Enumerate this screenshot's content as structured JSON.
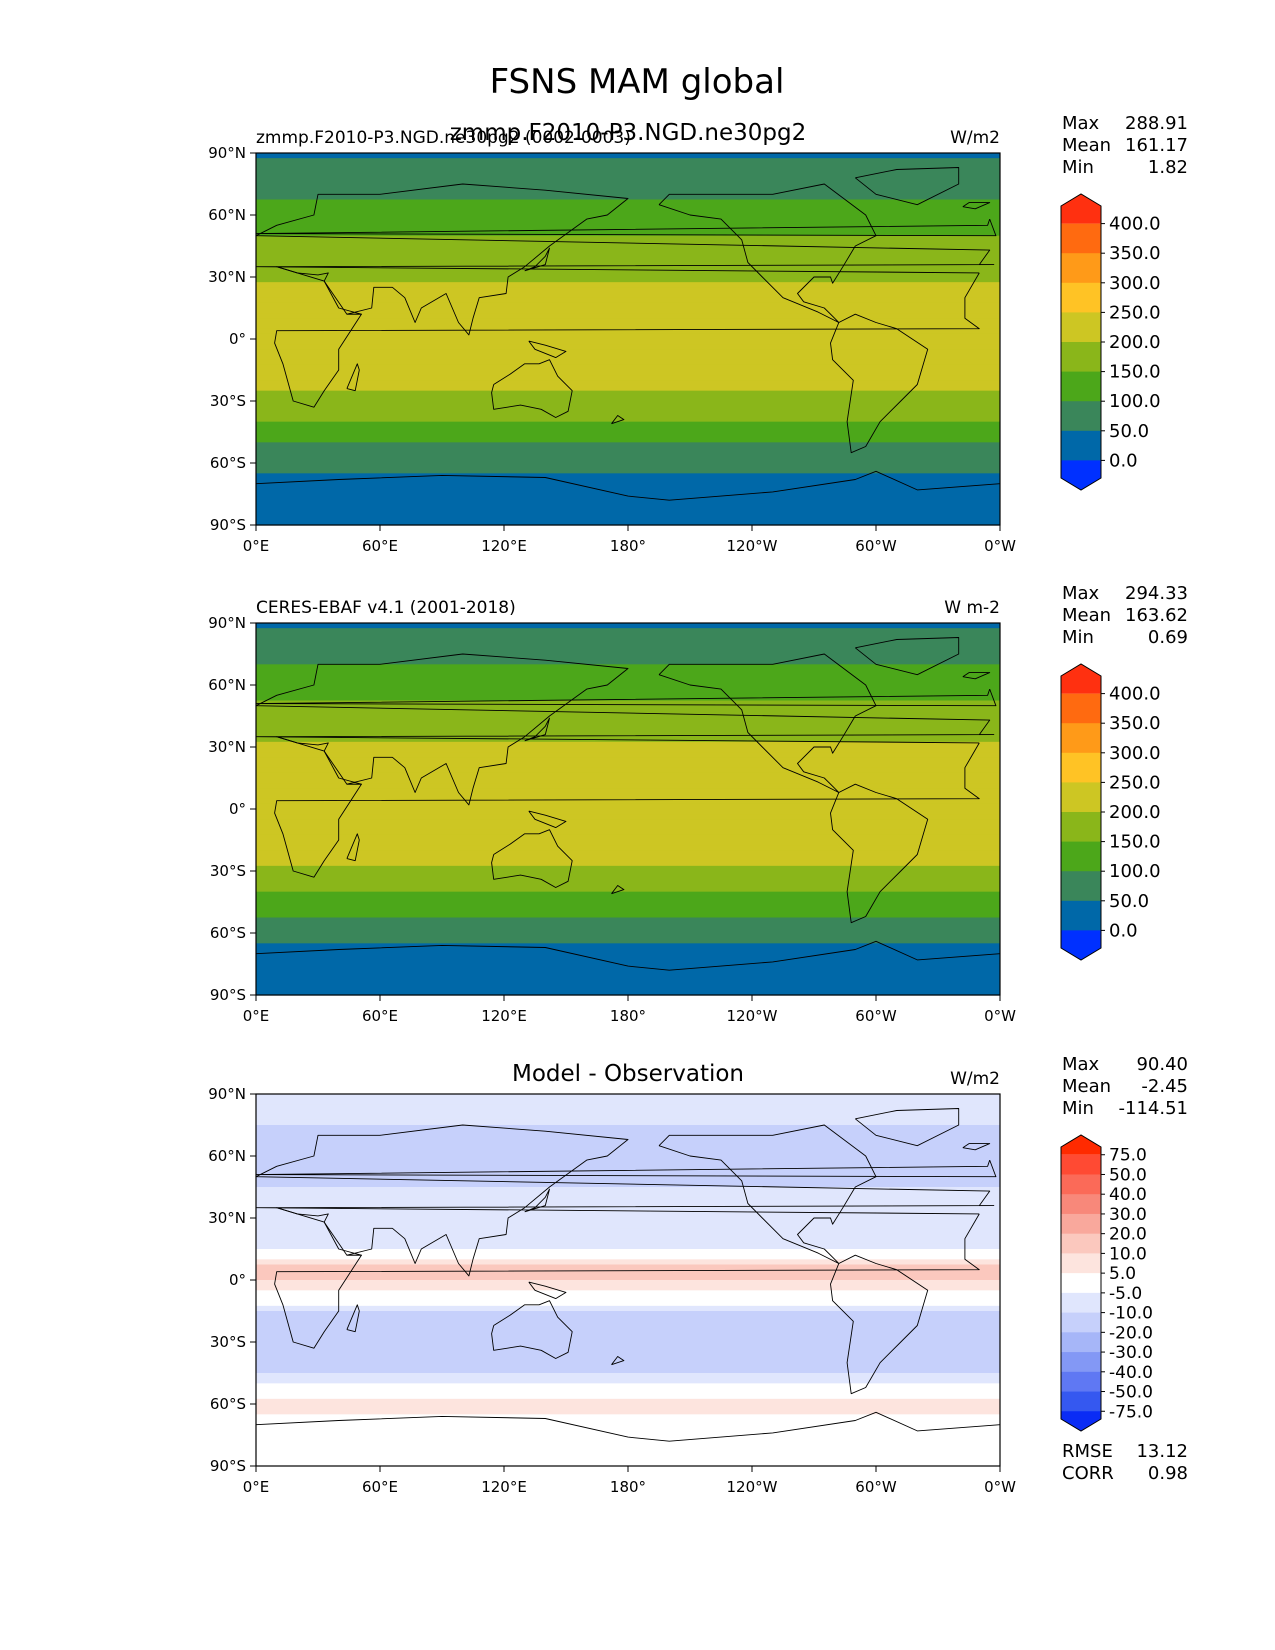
{
  "figure": {
    "title": "FSNS MAM global"
  },
  "axes": {
    "lat_ticks": [
      "90°N",
      "60°N",
      "30°N",
      "0°",
      "30°S",
      "60°S",
      "90°S"
    ],
    "lon_ticks": [
      "0°E",
      "60°E",
      "120°E",
      "180°",
      "120°W",
      "60°W",
      "0°W"
    ]
  },
  "chart_data": [
    {
      "type": "heatmap",
      "panel": "test",
      "title": "zmmp.F2010-P3.NGD.ne30pg2",
      "left_label": "zmmp.F2010-P3.NGD.ne30pg2 (0002-0003)",
      "units": "W/m2",
      "stats": [
        {
          "label": "Max",
          "value": "288.91"
        },
        {
          "label": "Mean",
          "value": "161.17"
        },
        {
          "label": "Min",
          "value": "1.82"
        }
      ],
      "colorbar": {
        "levels": [
          "400.0",
          "350.0",
          "300.0",
          "250.0",
          "200.0",
          "150.0",
          "100.0",
          "50.0",
          "0.0"
        ],
        "colors": [
          "#ff3010",
          "#ff6a10",
          "#ff9a18",
          "#ffc325",
          "#cdc623",
          "#8ab61a",
          "#4ca71a",
          "#3a865a",
          "#0068a8",
          "#0030ff"
        ]
      },
      "xlim": [
        0,
        360
      ],
      "ylim": [
        -90,
        90
      ],
      "zonal_mean_profile": [
        {
          "lat": 90,
          "value": 40
        },
        {
          "lat": 75,
          "value": 85
        },
        {
          "lat": 60,
          "value": 120
        },
        {
          "lat": 45,
          "value": 165
        },
        {
          "lat": 30,
          "value": 195
        },
        {
          "lat": 15,
          "value": 235
        },
        {
          "lat": 0,
          "value": 230
        },
        {
          "lat": -15,
          "value": 230
        },
        {
          "lat": -30,
          "value": 190
        },
        {
          "lat": -45,
          "value": 125
        },
        {
          "lat": -60,
          "value": 60
        },
        {
          "lat": -75,
          "value": 30
        },
        {
          "lat": -90,
          "value": 20
        }
      ]
    },
    {
      "type": "heatmap",
      "panel": "reference",
      "title": "",
      "left_label": "CERES-EBAF v4.1 (2001-2018)",
      "units": "W m-2",
      "stats": [
        {
          "label": "Max",
          "value": "294.33"
        },
        {
          "label": "Mean",
          "value": "163.62"
        },
        {
          "label": "Min",
          "value": "0.69"
        }
      ],
      "colorbar": {
        "levels": [
          "400.0",
          "350.0",
          "300.0",
          "250.0",
          "200.0",
          "150.0",
          "100.0",
          "50.0",
          "0.0"
        ],
        "colors": [
          "#ff3010",
          "#ff6a10",
          "#ff9a18",
          "#ffc325",
          "#cdc623",
          "#8ab61a",
          "#4ca71a",
          "#3a865a",
          "#0068a8",
          "#0030ff"
        ]
      },
      "xlim": [
        0,
        360
      ],
      "ylim": [
        -90,
        90
      ],
      "zonal_mean_profile": [
        {
          "lat": 90,
          "value": 40
        },
        {
          "lat": 75,
          "value": 85
        },
        {
          "lat": 60,
          "value": 125
        },
        {
          "lat": 45,
          "value": 170
        },
        {
          "lat": 30,
          "value": 205
        },
        {
          "lat": 15,
          "value": 240
        },
        {
          "lat": 0,
          "value": 225
        },
        {
          "lat": -15,
          "value": 235
        },
        {
          "lat": -30,
          "value": 195
        },
        {
          "lat": -45,
          "value": 130
        },
        {
          "lat": -60,
          "value": 60
        },
        {
          "lat": -75,
          "value": 30
        },
        {
          "lat": -90,
          "value": 20
        }
      ]
    },
    {
      "type": "heatmap",
      "panel": "difference",
      "title": "Model - Observation",
      "left_label": "",
      "units": "W/m2",
      "stats": [
        {
          "label": "Max",
          "value": "90.40"
        },
        {
          "label": "Mean",
          "value": "-2.45"
        },
        {
          "label": "Min",
          "value": "-114.51"
        }
      ],
      "extra_stats": [
        {
          "label": "RMSE",
          "value": "13.12"
        },
        {
          "label": "CORR",
          "value": "0.98"
        }
      ],
      "colorbar": {
        "levels": [
          "75.0",
          "50.0",
          "40.0",
          "30.0",
          "20.0",
          "10.0",
          "5.0",
          "-5.0",
          "-10.0",
          "-20.0",
          "-30.0",
          "-40.0",
          "-50.0",
          "-75.0"
        ],
        "colors": [
          "#ff2a00",
          "#ff4a33",
          "#fb6a58",
          "#f8887a",
          "#f9a89c",
          "#fbc8be",
          "#fde4de",
          "#ffffff",
          "#e0e6fd",
          "#c6d0fb",
          "#a6b6f8",
          "#8398f5",
          "#5f78f3",
          "#3558f0",
          "#0a2cf5"
        ]
      },
      "xlim": [
        0,
        360
      ],
      "ylim": [
        -90,
        90
      ],
      "zonal_mean_profile": [
        {
          "lat": 90,
          "value": -5
        },
        {
          "lat": 75,
          "value": -10
        },
        {
          "lat": 60,
          "value": -15
        },
        {
          "lat": 45,
          "value": -10
        },
        {
          "lat": 30,
          "value": -5
        },
        {
          "lat": 15,
          "value": -5
        },
        {
          "lat": 5,
          "value": 15
        },
        {
          "lat": -5,
          "value": 5
        },
        {
          "lat": -15,
          "value": -10
        },
        {
          "lat": -30,
          "value": -10
        },
        {
          "lat": -45,
          "value": -10
        },
        {
          "lat": -60,
          "value": 8
        },
        {
          "lat": -75,
          "value": 0
        },
        {
          "lat": -90,
          "value": 0
        }
      ]
    }
  ]
}
